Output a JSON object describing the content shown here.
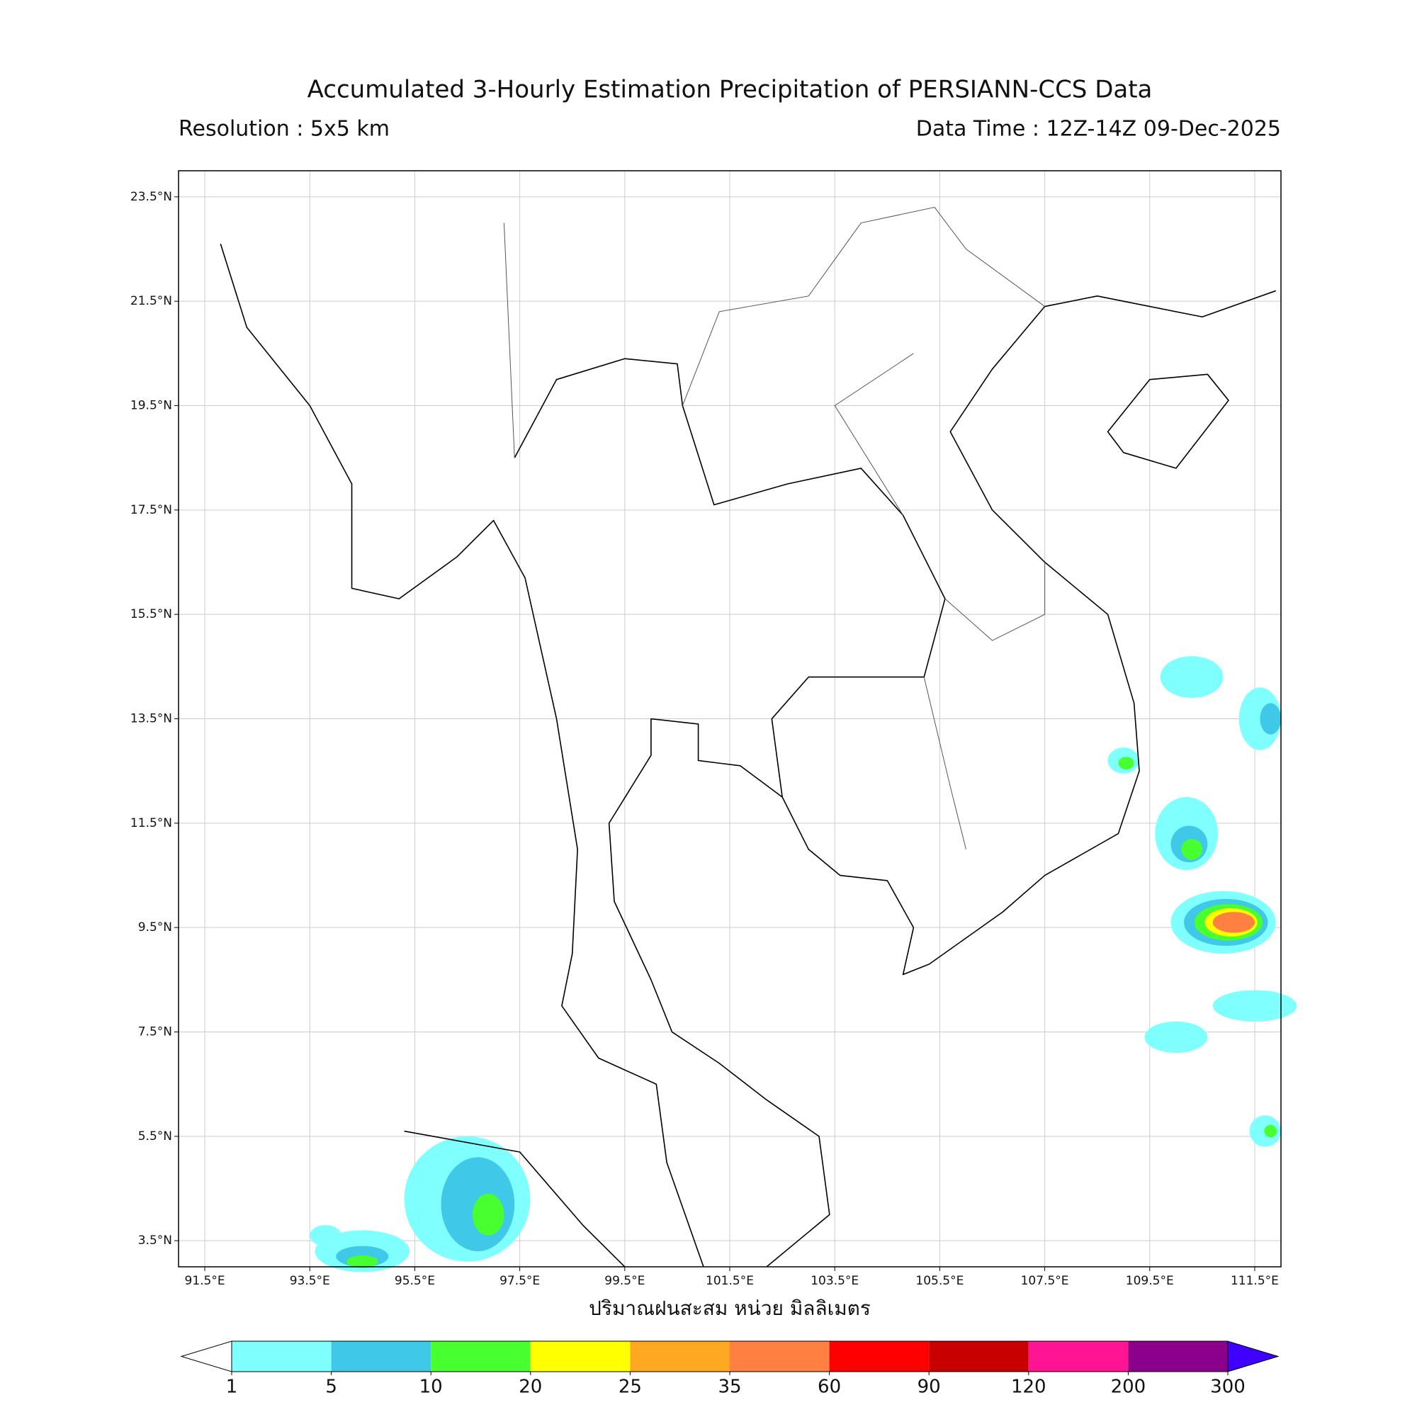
{
  "header": {
    "title": "Accumulated 3-Hourly Estimation Precipitation of PERSIANN-CCS Data",
    "resolution": "Resolution : 5x5 km",
    "data_time": "Data Time : 12Z-14Z 09-Dec-2025"
  },
  "map": {
    "lonlim": [
      91,
      112
    ],
    "latlim": [
      3,
      24
    ],
    "grid": true,
    "lonticks": [
      {
        "value": 91.5,
        "label": "91.5°E"
      },
      {
        "value": 93.5,
        "label": "93.5°E"
      },
      {
        "value": 95.5,
        "label": "95.5°E"
      },
      {
        "value": 97.5,
        "label": "97.5°E"
      },
      {
        "value": 99.5,
        "label": "99.5°E"
      },
      {
        "value": 101.5,
        "label": "101.5°E"
      },
      {
        "value": 103.5,
        "label": "103.5°E"
      },
      {
        "value": 105.5,
        "label": "105.5°E"
      },
      {
        "value": 107.5,
        "label": "107.5°E"
      },
      {
        "value": 109.5,
        "label": "109.5°E"
      },
      {
        "value": 111.5,
        "label": "111.5°E"
      }
    ],
    "latticks": [
      {
        "value": 3.5,
        "label": "3.5°N"
      },
      {
        "value": 5.5,
        "label": "5.5°N"
      },
      {
        "value": 7.5,
        "label": "7.5°N"
      },
      {
        "value": 9.5,
        "label": "9.5°N"
      },
      {
        "value": 11.5,
        "label": "11.5°N"
      },
      {
        "value": 13.5,
        "label": "13.5°N"
      },
      {
        "value": 15.5,
        "label": "15.5°N"
      },
      {
        "value": 17.5,
        "label": "17.5°N"
      },
      {
        "value": 19.5,
        "label": "19.5°N"
      },
      {
        "value": 21.5,
        "label": "21.5°N"
      },
      {
        "value": 23.5,
        "label": "23.5°N"
      }
    ]
  },
  "colorbar": {
    "label": "ปริมาณฝนสะสม หน่วย มิลลิเมตร",
    "levels": [
      1,
      5,
      10,
      20,
      25,
      35,
      60,
      90,
      120,
      200,
      300
    ],
    "colors": [
      "#80ffff",
      "#40c8e8",
      "#48ff30",
      "#ffff00",
      "#ffa820",
      "#ff8040",
      "#ff0000",
      "#c80000",
      "#ff1493",
      "#8b008b"
    ],
    "under_color": "#ffffff",
    "over_color": "#4000ff"
  }
}
